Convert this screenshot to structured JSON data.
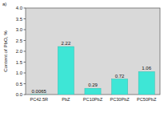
{
  "chart_data": {
    "type": "bar",
    "title": "a)",
    "y_label": "Content of PbO, %",
    "categories": [
      "PC42.5R",
      "PbZ",
      "PC10PbZ",
      "PC30PbZ",
      "PC50PbZ"
    ],
    "values": [
      0.0065,
      2.22,
      0.29,
      0.72,
      1.06
    ],
    "color": "#3ee6d6",
    "ylim": [
      0,
      4.0
    ],
    "yticks": [
      {
        "value": 0,
        "label": "0.0"
      },
      0.5,
      {
        "value": 1,
        "label": "1.0"
      },
      1.5,
      {
        "value": 2,
        "label": "2.0"
      },
      2.5,
      {
        "value": 3,
        "label": "3.0"
      },
      3.5,
      {
        "value": 4,
        "label": "4.0"
      }
    ],
    "data_labels": true
  }
}
